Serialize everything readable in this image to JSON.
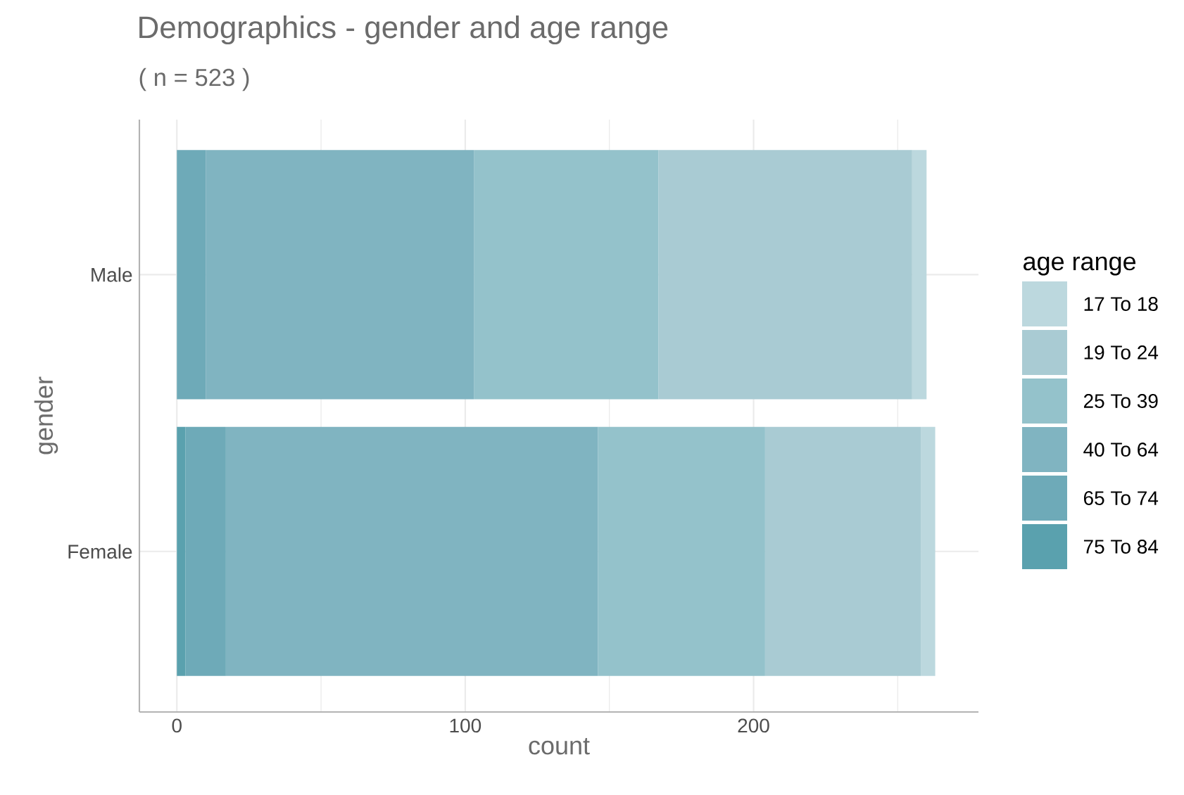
{
  "chart_data": {
    "type": "bar",
    "orientation": "horizontal",
    "stacked": true,
    "title": "Demographics - gender and age range",
    "subtitle": "( n = 523 )",
    "xlabel": "count",
    "ylabel": "gender",
    "legend_title": "age range",
    "categories": [
      "Male",
      "Female"
    ],
    "series": [
      {
        "name": "75 To 84",
        "color": "#5aa1ae",
        "values": [
          0,
          3
        ]
      },
      {
        "name": "65 To 74",
        "color": "#6eaab8",
        "values": [
          10,
          14
        ]
      },
      {
        "name": "40 To 64",
        "color": "#80b4c1",
        "values": [
          93,
          129
        ]
      },
      {
        "name": "25 To 39",
        "color": "#94c2cb",
        "values": [
          64,
          58
        ]
      },
      {
        "name": "19 To 24",
        "color": "#a9cbd3",
        "values": [
          88,
          54
        ]
      },
      {
        "name": "17 To 18",
        "color": "#bcd8de",
        "values": [
          5,
          5
        ]
      }
    ],
    "xlim": [
      -13,
      278
    ],
    "xticks": [
      0,
      {
        "value": 50,
        "label": null
      },
      100,
      {
        "value": 150,
        "label": null
      },
      200,
      {
        "value": 250,
        "label": null
      }
    ],
    "grid": true,
    "legend": "right"
  }
}
